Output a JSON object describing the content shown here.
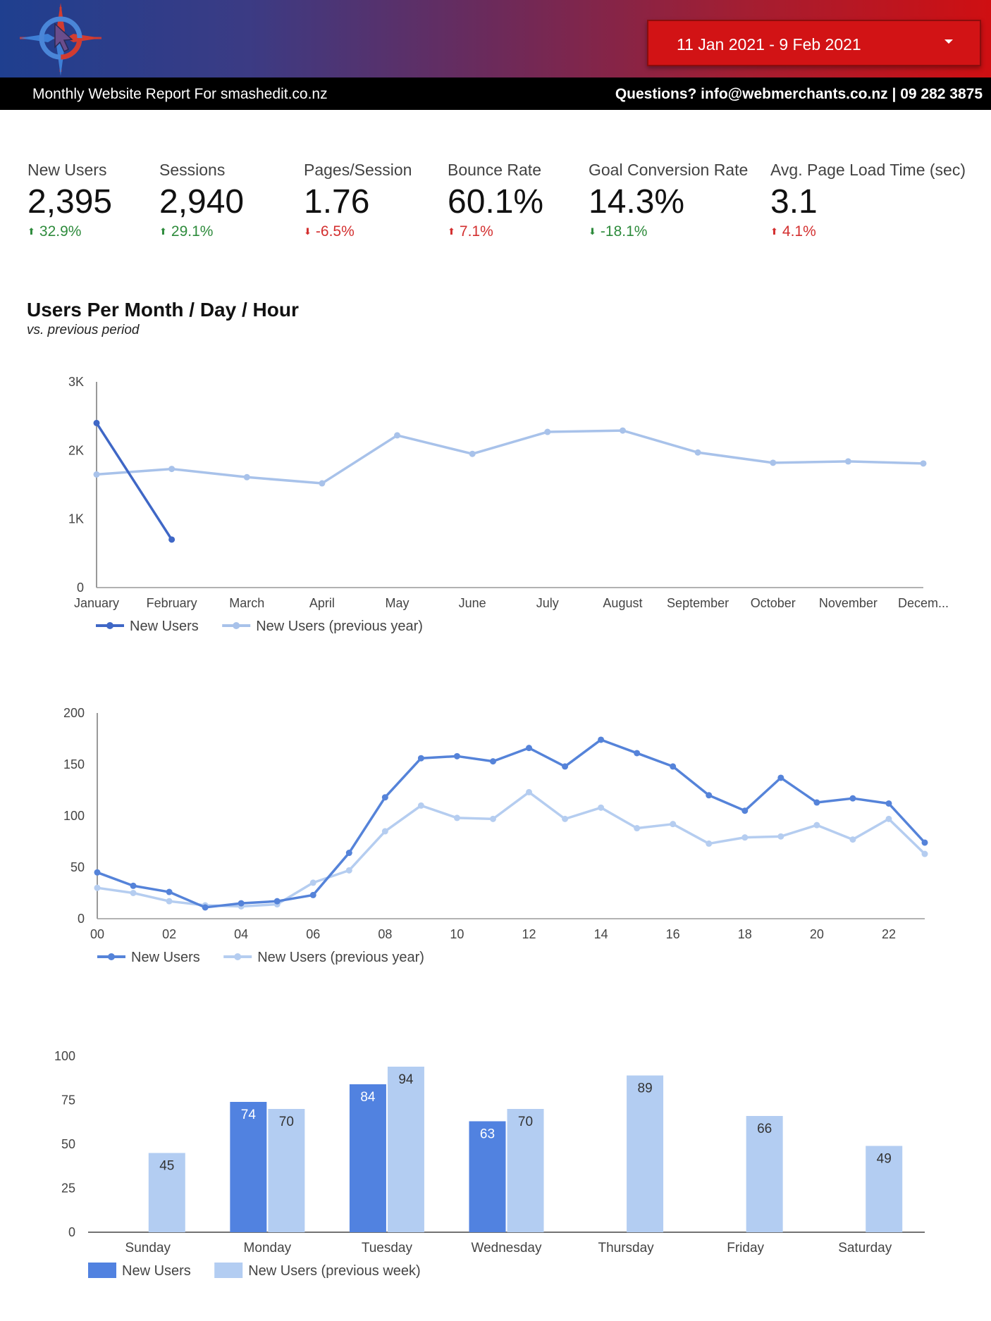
{
  "header": {
    "date_range": "11 Jan 2021 - 9 Feb 2021",
    "report_title": "Monthly Website Report For smashedit.co.nz",
    "contact": "Questions? info@webmerchants.co.nz | 09 282 3875",
    "gradient_colors": [
      "#1f3f8f",
      "#cf0f12"
    ]
  },
  "kpis": [
    {
      "label": "New Users",
      "value": "2,395",
      "delta": "32.9%",
      "direction": "up",
      "color": "#2e8b3c"
    },
    {
      "label": "Sessions",
      "value": "2,940",
      "delta": "29.1%",
      "direction": "up",
      "color": "#2e8b3c"
    },
    {
      "label": "Pages/Session",
      "value": "1.76",
      "delta": "-6.5%",
      "direction": "down",
      "color": "#d32f2f"
    },
    {
      "label": "Bounce Rate",
      "value": "60.1%",
      "delta": "7.1%",
      "direction": "up",
      "color": "#d32f2f"
    },
    {
      "label": "Goal Conversion Rate",
      "value": "14.3%",
      "delta": "-18.1%",
      "direction": "down",
      "color": "#2e8b3c"
    },
    {
      "label": "Avg. Page Load Time (sec)",
      "value": "3.1",
      "delta": "4.1%",
      "direction": "up",
      "color": "#d32f2f"
    }
  ],
  "section": {
    "title": "Users Per Month / Day / Hour",
    "subtitle": "vs. previous period"
  },
  "chart_data": [
    {
      "type": "line",
      "categories": [
        "January",
        "February",
        "March",
        "April",
        "May",
        "June",
        "July",
        "August",
        "September",
        "October",
        "November",
        "Decem..."
      ],
      "series": [
        {
          "name": "New Users",
          "color": "#3f67c6",
          "values": [
            2400,
            700,
            null,
            null,
            null,
            null,
            null,
            null,
            null,
            null,
            null,
            null
          ]
        },
        {
          "name": "New Users (previous year)",
          "color": "#a8c2ea",
          "values": [
            1650,
            1730,
            1610,
            1520,
            2220,
            1950,
            2270,
            2290,
            1970,
            1820,
            1840,
            1810
          ]
        }
      ],
      "yticks": [
        "0",
        "1K",
        "2K",
        "3K"
      ],
      "ylim": [
        0,
        3000
      ]
    },
    {
      "type": "line",
      "categories": [
        "00",
        "01",
        "02",
        "03",
        "04",
        "05",
        "06",
        "07",
        "08",
        "09",
        "10",
        "11",
        "12",
        "13",
        "14",
        "15",
        "16",
        "17",
        "18",
        "19",
        "20",
        "21",
        "22",
        "23"
      ],
      "xtick_labels": [
        "00",
        "02",
        "04",
        "06",
        "08",
        "10",
        "12",
        "14",
        "16",
        "18",
        "20",
        "22"
      ],
      "series": [
        {
          "name": "New Users",
          "color": "#5583d9",
          "values": [
            45,
            32,
            26,
            11,
            15,
            17,
            23,
            64,
            118,
            156,
            158,
            153,
            166,
            148,
            174,
            161,
            148,
            120,
            105,
            137,
            113,
            117,
            112,
            74
          ]
        },
        {
          "name": "New Users (previous year)",
          "color": "#b5cdf0",
          "values": [
            30,
            25,
            17,
            13,
            12,
            14,
            35,
            47,
            85,
            110,
            98,
            97,
            123,
            97,
            108,
            88,
            92,
            73,
            79,
            80,
            91,
            77,
            97,
            63
          ]
        }
      ],
      "yticks": [
        "0",
        "50",
        "100",
        "150",
        "200"
      ],
      "ylim": [
        0,
        200
      ]
    },
    {
      "type": "bar",
      "categories": [
        "Sunday",
        "Monday",
        "Tuesday",
        "Wednesday",
        "Thursday",
        "Friday",
        "Saturday"
      ],
      "series": [
        {
          "name": "New Users",
          "color": "#5182e0",
          "values": [
            null,
            74,
            84,
            63,
            null,
            null,
            null
          ]
        },
        {
          "name": "New Users (previous week)",
          "color": "#b3cdf2",
          "values": [
            45,
            70,
            94,
            70,
            89,
            66,
            49
          ]
        }
      ],
      "yticks": [
        "0",
        "25",
        "50",
        "75",
        "100"
      ],
      "ylim": [
        0,
        100
      ]
    }
  ]
}
